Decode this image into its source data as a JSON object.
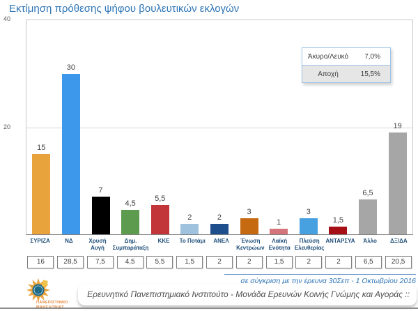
{
  "title": "Εκτίμηση πρόθεσης ψήφου βουλευτικών εκλογών",
  "legend": {
    "rows": [
      {
        "label": "Άκυρο/Λευκό",
        "value": "7,0%"
      },
      {
        "label": "Αποχή",
        "value": "15,5%"
      }
    ]
  },
  "chart_data": {
    "type": "bar",
    "title": "Εκτίμηση πρόθεσης ψήφου βουλευτικών εκλογών",
    "categories": [
      "ΣΥΡΙΖΑ",
      "ΝΔ",
      "Χρυσή Αυγή",
      "Δημ. Συμπαράταξη",
      "ΚΚΕ",
      "Το Ποτάμι",
      "ΑΝΕΛ",
      "Ένωση Κεντρώων",
      "Λαϊκή Ενότητα",
      "Πλεύση Ελευθερίας",
      "ΑΝΤΑΡΣΥΑ",
      "Άλλο",
      "ΔΞ/ΔΑ"
    ],
    "values": [
      15,
      30,
      7,
      4.5,
      5.5,
      2,
      2,
      3,
      1,
      3,
      1.5,
      6.5,
      19
    ],
    "value_labels": [
      "15",
      "30",
      "7",
      "4,5",
      "5,5",
      "2",
      "2",
      "3",
      "1",
      "3",
      "1,5",
      "6,5",
      "19"
    ],
    "bar_colors": [
      "#E8A33D",
      "#3D97EA",
      "#000000",
      "#5D9C4E",
      "#C23639",
      "#9FC2DE",
      "#1F4E8C",
      "#C56A11",
      "#D4757C",
      "#47A0E0",
      "#A50F15",
      "#A6A6A6",
      "#A6A6A6"
    ],
    "previous_values": [
      "16",
      "28,5",
      "7,5",
      "4,5",
      "5,5",
      "1,5",
      "2",
      "2",
      "1,5",
      "2",
      "2",
      "6,5",
      "20,5"
    ],
    "ylim": [
      0,
      40
    ],
    "y_ticks": [
      {
        "label": "40",
        "value": 40
      },
      {
        "label": "20",
        "value": 20
      }
    ],
    "grid_values": [
      20
    ],
    "legend_box": [
      {
        "label": "Άκυρο/Λευκό",
        "value": "7,0%"
      },
      {
        "label": "Αποχή",
        "value": "15,5%"
      }
    ]
  },
  "comparison_note": "σε σύγκριση με την έρευνα 30Σεπ - 1 Οκτωβρίου 2016",
  "footer": {
    "text": "Ερευνητικό Πανεπιστημιακό Ινστιτούτο - Μονάδα Ερευνών Κοινής Γνώμης και Αγοράς ::",
    "logo_line1": "ΠΑΝΕΠΙΣΤΗΜΙΟ",
    "logo_line2": "ΜΑΚΕΔΟΝΙΑΣ"
  }
}
